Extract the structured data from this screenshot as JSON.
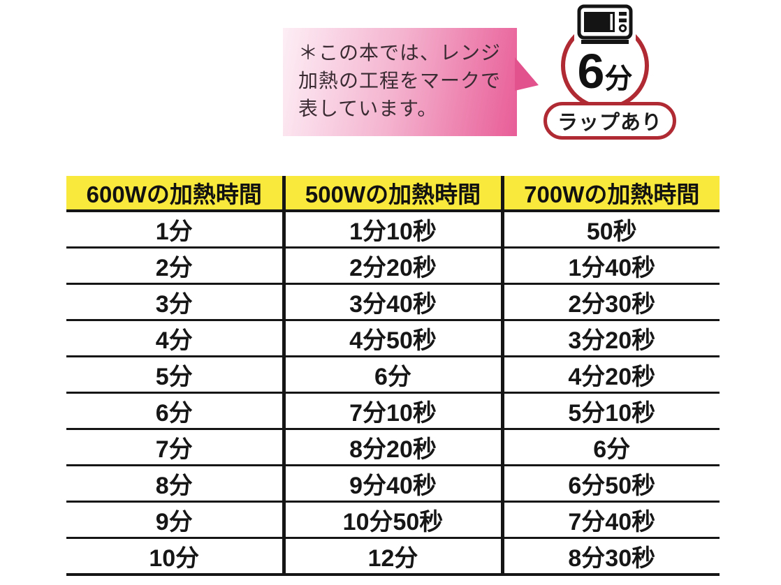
{
  "note": {
    "lines": [
      "＊この本では、レンジ",
      "加熱の工程をマークで",
      "表しています。"
    ]
  },
  "mark": {
    "icon": "microwave-icon",
    "time_value": "6",
    "time_unit": "分",
    "wrap_label": "ラップあり"
  },
  "colors": {
    "accent_red": "#b02a33",
    "header_yellow": "#f8e93c",
    "note_gradient_start": "#fdeef5",
    "note_gradient_end": "#e85d97",
    "line_black": "#151515"
  },
  "table": {
    "headers": [
      "600Wの加熱時間",
      "500Wの加熱時間",
      "700Wの加熱時間"
    ],
    "rows": [
      [
        "1分",
        "1分10秒",
        "50秒"
      ],
      [
        "2分",
        "2分20秒",
        "1分40秒"
      ],
      [
        "3分",
        "3分40秒",
        "2分30秒"
      ],
      [
        "4分",
        "4分50秒",
        "3分20秒"
      ],
      [
        "5分",
        "6分",
        "4分20秒"
      ],
      [
        "6分",
        "7分10秒",
        "5分10秒"
      ],
      [
        "7分",
        "8分20秒",
        "6分"
      ],
      [
        "8分",
        "9分40秒",
        "6分50秒"
      ],
      [
        "9分",
        "10分50秒",
        "7分40秒"
      ],
      [
        "10分",
        "12分",
        "8分30秒"
      ]
    ]
  }
}
